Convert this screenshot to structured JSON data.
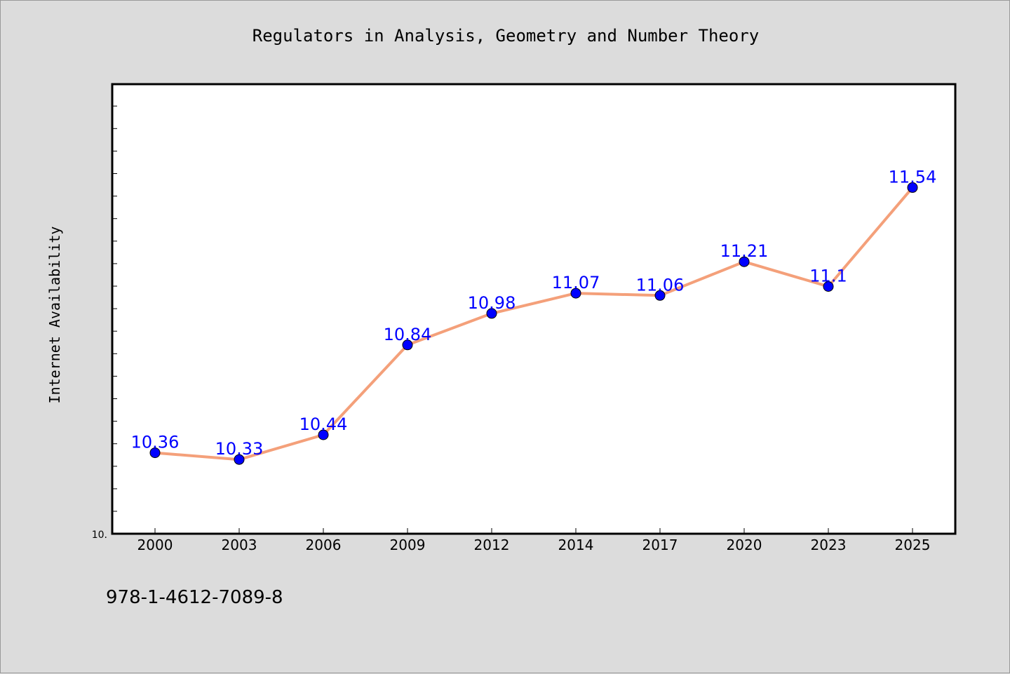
{
  "title": "Regulators in Analysis, Geometry and Number Theory",
  "footer_text": "978-1-4612-7089-8",
  "colors": {
    "line": "#f4a07a",
    "marker": "#0000ff",
    "label": "#0000ff",
    "background": "#dcdcdc",
    "plot_bg": "#ffffff"
  },
  "chart_data": {
    "type": "line",
    "title": "Regulators in Analysis, Geometry and Number Theory",
    "xlabel": "",
    "ylabel": "Internet Availability",
    "categories": [
      "2000",
      "2003",
      "2006",
      "2009",
      "2012",
      "2014",
      "2017",
      "2020",
      "2023",
      "2025"
    ],
    "values": [
      10.36,
      10.33,
      10.44,
      10.84,
      10.98,
      11.07,
      11.06,
      11.21,
      11.1,
      11.54
    ],
    "value_labels": [
      "10.36",
      "10.33",
      "10.44",
      "10.84",
      "10.98",
      "11.07",
      "11.06",
      "11.21",
      "11.1",
      "11.54"
    ],
    "ymin_label": "10.",
    "ylim": [
      10.0,
      12.0
    ],
    "grid": false,
    "legend": "none"
  }
}
